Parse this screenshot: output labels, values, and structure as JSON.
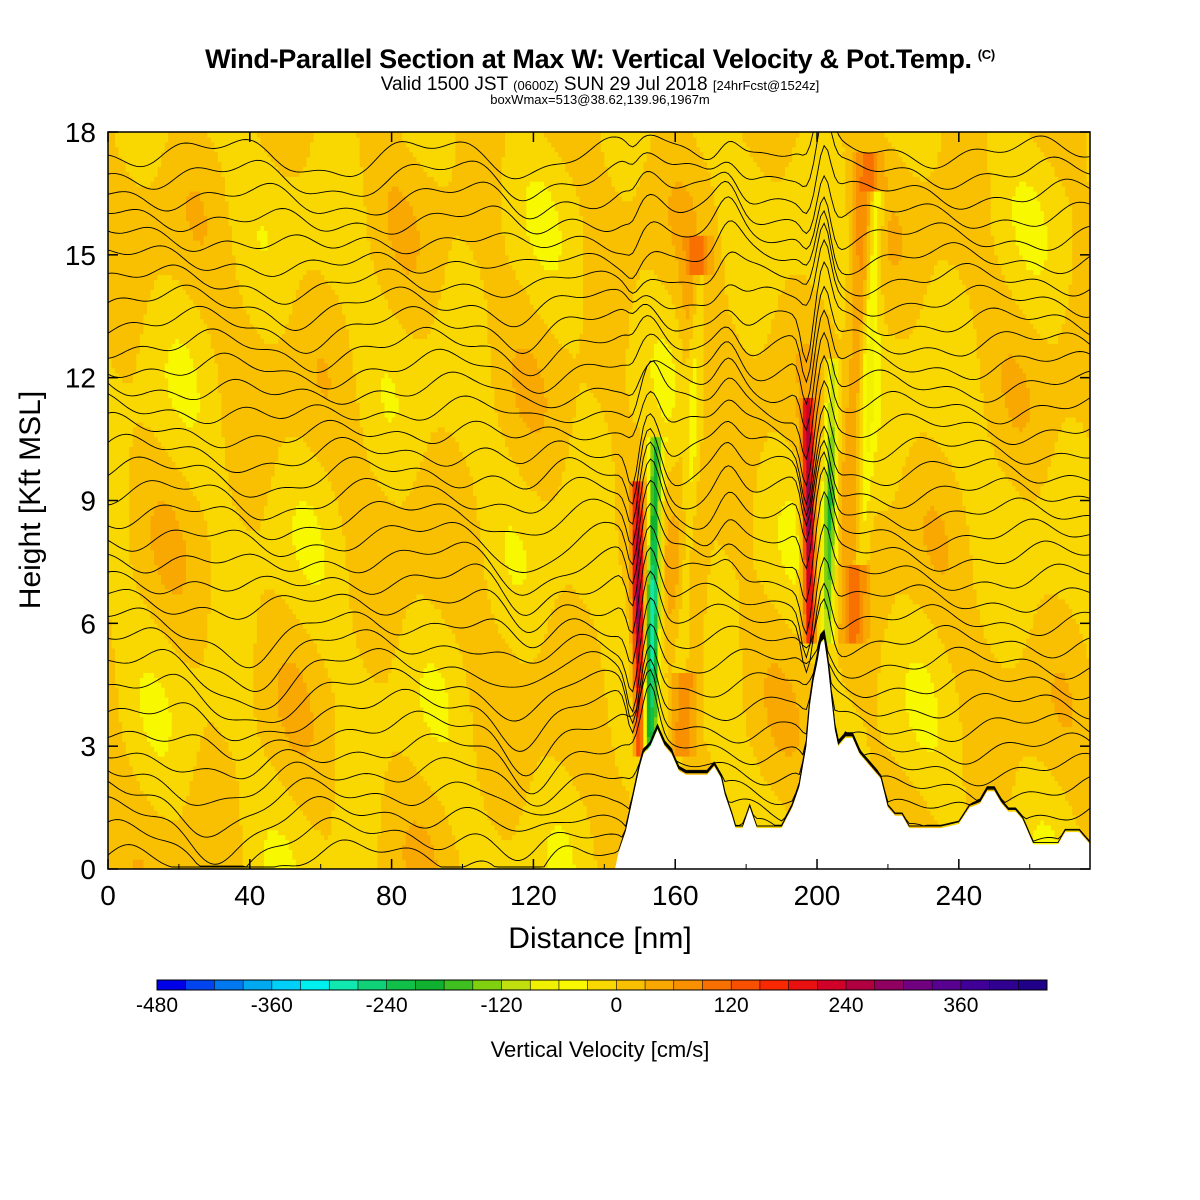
{
  "title": {
    "main": "Wind-Parallel Section at Max W: Vertical Velocity & Pot.Temp.",
    "copyright": "(C)",
    "valid_prefix": "Valid 1500 JST",
    "valid_zulu": "(0600Z)",
    "valid_date": "SUN 29 Jul 2018",
    "forecast": "[24hrFcst@1524z]",
    "boxmax": "boxWmax=513@38.62,139.96,1967m"
  },
  "chart_data": {
    "type": "heatmap",
    "xlabel": "Distance [nm]",
    "ylabel": "Height [Kft MSL]",
    "xlim": [
      0,
      277
    ],
    "ylim": [
      0,
      18
    ],
    "x_ticks": [
      0,
      40,
      80,
      120,
      160,
      200,
      240
    ],
    "y_ticks": [
      0,
      3,
      6,
      9,
      12,
      15,
      18
    ],
    "fill": "Vertical Velocity [cm/s]",
    "contours": "Potential temperature isentropes",
    "updraft_bands": [
      {
        "x": 150,
        "bottom": 2.8,
        "top": 9.5,
        "max": 280
      },
      {
        "x": 198,
        "bottom": 5.5,
        "top": 11.5,
        "max": 320
      }
    ],
    "downdraft_bands": [
      {
        "x": 153,
        "bottom": 2.8,
        "top": 10.5,
        "min": -330
      },
      {
        "x": 203,
        "bottom": 5.5,
        "top": 12.5,
        "min": -200
      }
    ],
    "terrain_kft": [
      [
        143,
        0
      ],
      [
        144,
        0.4
      ],
      [
        146,
        0.9
      ],
      [
        148,
        1.7
      ],
      [
        150,
        2.5
      ],
      [
        151,
        2.8
      ],
      [
        153,
        3.0
      ],
      [
        155,
        3.4
      ],
      [
        157,
        3.0
      ],
      [
        159,
        2.8
      ],
      [
        161,
        2.4
      ],
      [
        163,
        2.3
      ],
      [
        166,
        2.3
      ],
      [
        169,
        2.3
      ],
      [
        171,
        2.5
      ],
      [
        173,
        2.2
      ],
      [
        174,
        1.8
      ],
      [
        176,
        1.3
      ],
      [
        177,
        1.0
      ],
      [
        179,
        1.0
      ],
      [
        181,
        1.5
      ],
      [
        183,
        1.0
      ],
      [
        185,
        1.0
      ],
      [
        190,
        1.0
      ],
      [
        193,
        1.5
      ],
      [
        195,
        2.0
      ],
      [
        197,
        3.0
      ],
      [
        198,
        4.0
      ],
      [
        199,
        4.6
      ],
      [
        200,
        5.0
      ],
      [
        201,
        5.5
      ],
      [
        202,
        5.6
      ],
      [
        203,
        5.0
      ],
      [
        204,
        4.2
      ],
      [
        205,
        3.4
      ],
      [
        206,
        3.0
      ],
      [
        208,
        3.2
      ],
      [
        210,
        3.2
      ],
      [
        212,
        2.8
      ],
      [
        214,
        2.6
      ],
      [
        216,
        2.4
      ],
      [
        218,
        2.2
      ],
      [
        220,
        1.5
      ],
      [
        222,
        1.3
      ],
      [
        224,
        1.3
      ],
      [
        226,
        1.0
      ],
      [
        230,
        1.0
      ],
      [
        235,
        1.0
      ],
      [
        240,
        1.1
      ],
      [
        243,
        1.5
      ],
      [
        246,
        1.6
      ],
      [
        248,
        1.9
      ],
      [
        250,
        1.9
      ],
      [
        252,
        1.6
      ],
      [
        254,
        1.4
      ],
      [
        256,
        1.4
      ],
      [
        258,
        1.2
      ],
      [
        259,
        1.0
      ],
      [
        260,
        0.8
      ],
      [
        261,
        0.6
      ],
      [
        263,
        0.6
      ],
      [
        265,
        0.6
      ],
      [
        268,
        0.6
      ],
      [
        270,
        0.9
      ],
      [
        274,
        0.9
      ],
      [
        277,
        0.6
      ]
    ],
    "colorbar": {
      "title": "Vertical Velocity [cm/s]",
      "labels": [
        "-480",
        "-360",
        "-240",
        "-120",
        "0",
        "120",
        "240",
        "360"
      ],
      "label_values": [
        -480,
        -360,
        -240,
        -120,
        0,
        120,
        240,
        360
      ],
      "min": -480,
      "max": 450,
      "step": 30,
      "colors": [
        "#0000e8",
        "#0044f0",
        "#0078f0",
        "#00a8f0",
        "#00d0f8",
        "#00f0f0",
        "#10e8b0",
        "#10d078",
        "#10c048",
        "#10b030",
        "#40c020",
        "#80d010",
        "#c0e010",
        "#f0f000",
        "#f8f800",
        "#f8d800",
        "#f8c000",
        "#f8a800",
        "#f89000",
        "#f87000",
        "#f85000",
        "#f82800",
        "#e81010",
        "#d00028",
        "#b00040",
        "#900060",
        "#700080",
        "#580090",
        "#400098",
        "#300090",
        "#200088"
      ]
    }
  }
}
